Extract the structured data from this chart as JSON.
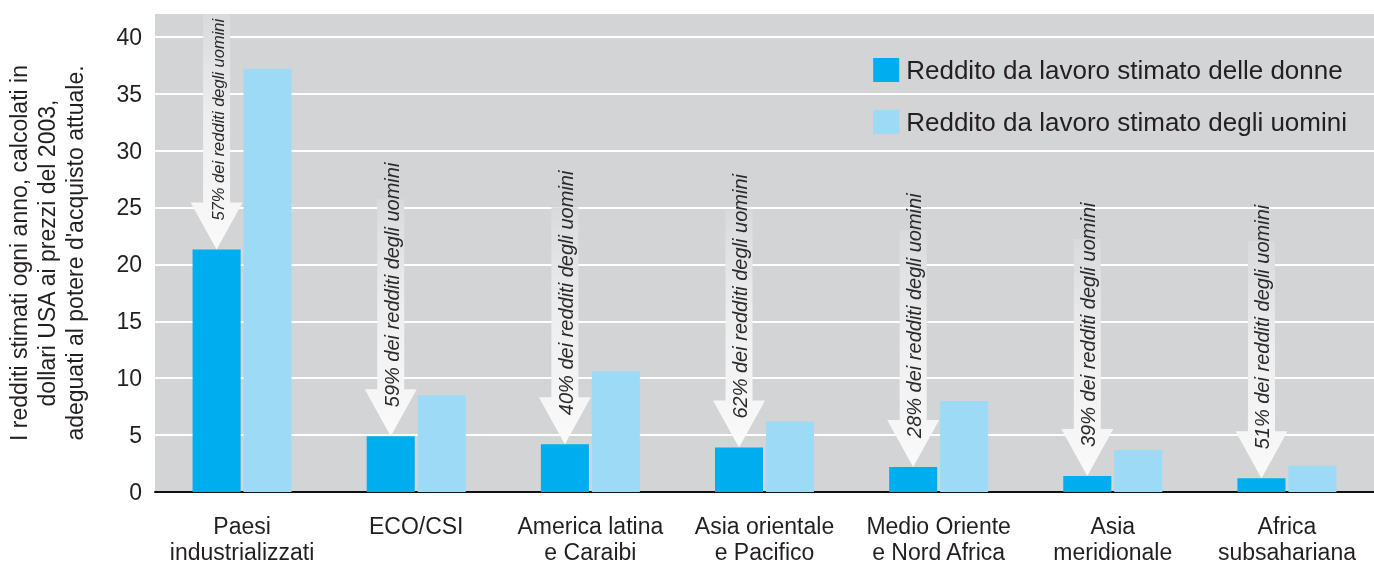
{
  "chart_data": {
    "type": "bar",
    "ylabel": "I redditi stimati ogni anno, calcolati in\ndollari USA ai prezzi del 2003,\nadeguati al potere d'acquisto attuale.",
    "categories": [
      "Paesi industrializzati",
      "ECO/CSI",
      "America latina e Caraibi",
      "Asia orientale e Pacifico",
      "Medio Oriente e Nord Africa",
      "Asia meridionale",
      "Africa subsahariana"
    ],
    "series": [
      {
        "name": "Reddito da lavoro stimato delle donne",
        "color": "#00aeef",
        "values": [
          21.3,
          4.9,
          4.2,
          3.9,
          2.2,
          1.4,
          1.2
        ]
      },
      {
        "name": "Reddito da lavoro stimato degli uomini",
        "color": "#9ddaf6",
        "values": [
          37.2,
          8.5,
          10.6,
          6.2,
          8.0,
          3.7,
          2.3
        ]
      }
    ],
    "ylim": [
      0,
      42
    ],
    "yticks": [
      0,
      5,
      10,
      15,
      20,
      25,
      30,
      35,
      40
    ],
    "grid": "y",
    "legend": "top right",
    "annotations": [
      {
        "text": "57% dei redditi degli uomini",
        "x": "Paesi industrializzati",
        "y": 21.3
      },
      {
        "text": "59% dei redditi degli uomini",
        "x": "ECO/CSI",
        "y": 4.9
      },
      {
        "text": "40% dei redditi degli uomini",
        "x": "America latina e Caraibi",
        "y": 4.2
      },
      {
        "text": "62% dei redditi degli uomini",
        "x": "Asia orientale e Pacifico",
        "y": 3.9
      },
      {
        "text": "28% dei redditi degli uomini",
        "x": "Medio Oriente e Nord Africa",
        "y": 2.2
      },
      {
        "text": "39% dei redditi degli uomini",
        "x": "Asia meridionale",
        "y": 1.4
      },
      {
        "text": "51% dei redditi degli uomini",
        "x": "Africa subsahariana",
        "y": 1.2
      }
    ]
  }
}
